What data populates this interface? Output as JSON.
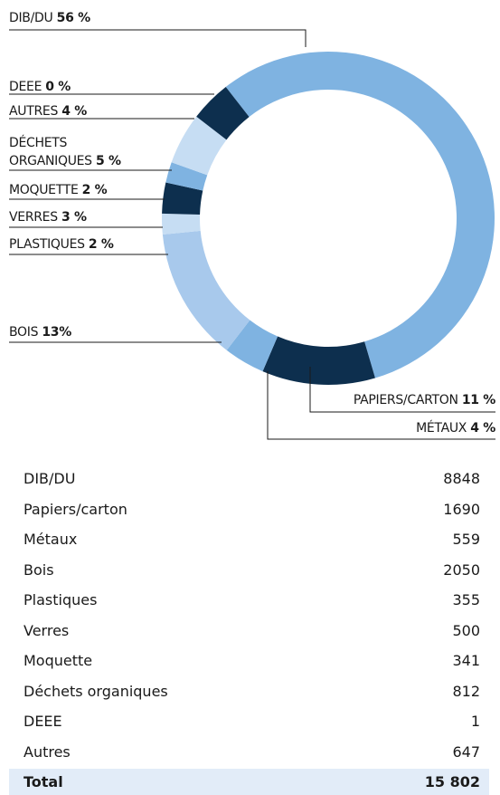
{
  "chart_data": {
    "type": "donut",
    "categories": [
      "DIB/DU",
      "PAPIERS/CARTON",
      "MÉTAUX",
      "BOIS",
      "PLASTIQUES",
      "VERRES",
      "MOQUETTE",
      "DÉCHETS ORGANIQUES",
      "DEEE",
      "AUTRES"
    ],
    "values": [
      56,
      11,
      4,
      13,
      2,
      3,
      2,
      5,
      0,
      4
    ],
    "value_labels": [
      "56 %",
      "11 %",
      "4 %",
      "13%",
      "2 %",
      "3 %",
      "2 %",
      "5 %",
      "0 %",
      "4 %"
    ],
    "colors": [
      "#7fb3e1",
      "#0d2f4e",
      "#7fb3e1",
      "#a8c9ec",
      "#c6ddf3",
      "#0d2f4e",
      "#7fb3e1",
      "#c6ddf3",
      "#0d2f4e",
      "#0d2f4e"
    ]
  },
  "table": {
    "rows": [
      [
        "DIB/DU",
        "8848"
      ],
      [
        "Papiers/carton",
        "1690"
      ],
      [
        "Métaux",
        "559"
      ],
      [
        "Bois",
        "2050"
      ],
      [
        "Plastiques",
        "355"
      ],
      [
        "Verres",
        "500"
      ],
      [
        "Moquette",
        "341"
      ],
      [
        "Déchets organiques",
        "812"
      ],
      [
        "DEEE",
        "1"
      ],
      [
        "Autres",
        "647"
      ]
    ],
    "total": [
      "Total",
      "15 802"
    ]
  }
}
